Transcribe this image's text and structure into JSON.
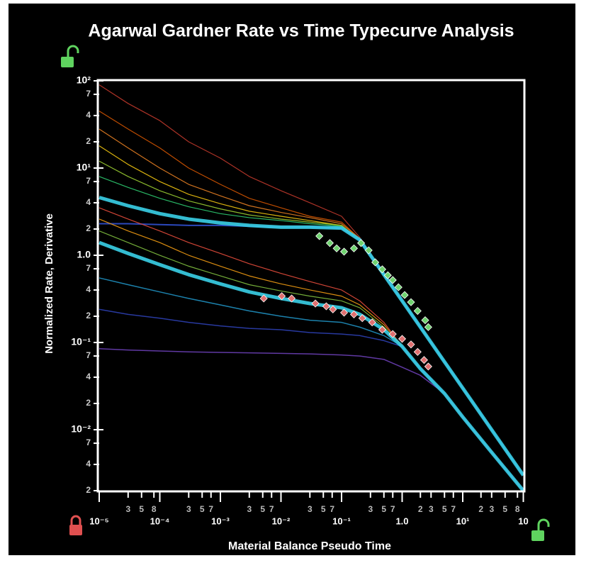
{
  "chart_data": {
    "type": "line",
    "title": "Agarwal Gardner Rate vs Time Typecurve Analysis",
    "x_label": "Material Balance Pseudo Time",
    "y_label": "Normalized  Rate, Derivative",
    "log_x": true,
    "log_y": true,
    "grid": false,
    "xlim": [
      1e-05,
      100
    ],
    "ylim": [
      0.002,
      100
    ],
    "xticks": [
      {
        "value": 1e-05,
        "label": "10⁻⁵"
      },
      {
        "value": 3e-05,
        "label": "3"
      },
      {
        "value": 5e-05,
        "label": "5"
      },
      {
        "value": 8e-05,
        "label": "8"
      },
      {
        "value": 0.0001,
        "label": "10⁻⁴"
      },
      {
        "value": 0.0003,
        "label": "3"
      },
      {
        "value": 0.0005,
        "label": "5"
      },
      {
        "value": 0.0007,
        "label": "7"
      },
      {
        "value": 0.001,
        "label": "10⁻³"
      },
      {
        "value": 0.003,
        "label": "3"
      },
      {
        "value": 0.005,
        "label": "5"
      },
      {
        "value": 0.007,
        "label": "7"
      },
      {
        "value": 0.01,
        "label": "10⁻²"
      },
      {
        "value": 0.03,
        "label": "3"
      },
      {
        "value": 0.05,
        "label": "5"
      },
      {
        "value": 0.07,
        "label": "7"
      },
      {
        "value": 0.1,
        "label": "10⁻¹"
      },
      {
        "value": 0.3,
        "label": "3"
      },
      {
        "value": 0.5,
        "label": "5"
      },
      {
        "value": 0.7,
        "label": "7"
      },
      {
        "value": 1,
        "label": "1.0"
      },
      2,
      3,
      5,
      7,
      {
        "value": 10,
        "label": "10¹"
      },
      {
        "value": 20,
        "label": "2"
      },
      {
        "value": 30,
        "label": "3"
      },
      {
        "value": 50,
        "label": "5"
      },
      {
        "value": 80,
        "label": "8"
      },
      {
        "value": 100,
        "label": "10"
      }
    ],
    "yticks": [
      {
        "value": 100,
        "label": "10²"
      },
      {
        "value": 70,
        "label": "7"
      },
      {
        "value": 40,
        "label": "4"
      },
      {
        "value": 20,
        "label": "2"
      },
      {
        "value": 10,
        "label": "10¹"
      },
      7,
      4,
      2,
      {
        "value": 1,
        "label": "1.0"
      },
      {
        "value": 0.7,
        "label": "7"
      },
      {
        "value": 0.4,
        "label": "4"
      },
      {
        "value": 0.2,
        "label": "2"
      },
      {
        "value": 0.1,
        "label": "10⁻¹"
      },
      {
        "value": 0.07,
        "label": "7"
      },
      {
        "value": 0.04,
        "label": "4"
      },
      {
        "value": 0.02,
        "label": "2"
      },
      {
        "value": 0.01,
        "label": "10⁻²"
      },
      {
        "value": 0.007,
        "label": "7"
      },
      {
        "value": 0.004,
        "label": "4"
      },
      {
        "value": 0.002,
        "label": "2"
      }
    ],
    "x": [
      1e-05,
      3e-05,
      0.0001,
      0.0003,
      0.001,
      0.003,
      0.01,
      0.03,
      0.1,
      0.2,
      0.5,
      1,
      2,
      5,
      10,
      30,
      100
    ],
    "series": [
      {
        "color": "#c0392b",
        "line_width": 1.2,
        "values": [
          90,
          55,
          35,
          20,
          13,
          8,
          5.5,
          4,
          2.8,
          1.6,
          0.6,
          0.3,
          0.15,
          0.06,
          0.03,
          0.01,
          0.003
        ]
      },
      {
        "color": "#d35400",
        "line_width": 1.2,
        "values": [
          45,
          28,
          17,
          10,
          6.5,
          4.5,
          3.5,
          2.8,
          2.4,
          1.55,
          0.6,
          0.3,
          0.15,
          0.06,
          0.03,
          0.01,
          0.003
        ]
      },
      {
        "color": "#e67e22",
        "line_width": 1.2,
        "values": [
          28,
          17,
          10,
          6.5,
          4.8,
          3.7,
          3.1,
          2.7,
          2.3,
          1.55,
          0.6,
          0.3,
          0.15,
          0.06,
          0.03,
          0.01,
          0.003
        ]
      },
      {
        "color": "#f1c40f",
        "line_width": 1.2,
        "values": [
          18,
          11,
          7,
          5,
          3.9,
          3.2,
          2.8,
          2.5,
          2.2,
          1.5,
          0.6,
          0.3,
          0.15,
          0.06,
          0.03,
          0.01,
          0.003
        ]
      },
      {
        "color": "#9acd32",
        "line_width": 1.2,
        "values": [
          12,
          8,
          5.5,
          4.2,
          3.4,
          2.9,
          2.6,
          2.4,
          2.2,
          1.5,
          0.6,
          0.3,
          0.15,
          0.06,
          0.03,
          0.01,
          0.003
        ]
      },
      {
        "color": "#2ecc71",
        "line_width": 1.2,
        "values": [
          8,
          6,
          4.5,
          3.6,
          3,
          2.7,
          2.5,
          2.3,
          2.15,
          1.5,
          0.6,
          0.3,
          0.15,
          0.06,
          0.03,
          0.01,
          0.003
        ]
      },
      {
        "color": "#3050d0",
        "line_width": 2,
        "values": [
          2.3,
          2.3,
          2.25,
          2.2,
          2.2,
          2.15,
          2.1,
          2.1,
          2.05,
          1.5,
          0.6,
          0.3,
          0.15,
          0.06,
          0.03,
          0.01,
          0.003
        ]
      },
      {
        "color": "#3ad0e8",
        "line_width": 5,
        "values": [
          4.6,
          3.7,
          3,
          2.6,
          2.35,
          2.2,
          2.1,
          2.1,
          2.05,
          1.5,
          0.6,
          0.3,
          0.15,
          0.06,
          0.03,
          0.01,
          0.003
        ]
      },
      {
        "color": "#e74c3c",
        "line_width": 1.2,
        "values": [
          3.5,
          2.6,
          1.9,
          1.4,
          1.05,
          0.8,
          0.62,
          0.5,
          0.4,
          0.3,
          0.17,
          0.09,
          0.05,
          0.026,
          0.014,
          0.0055,
          0.002
        ]
      },
      {
        "color": "#f39c12",
        "line_width": 1.2,
        "values": [
          2.6,
          1.9,
          1.4,
          1,
          0.75,
          0.58,
          0.47,
          0.4,
          0.34,
          0.27,
          0.16,
          0.09,
          0.05,
          0.026,
          0.014,
          0.0055,
          0.002
        ]
      },
      {
        "color": "#7fbf3f",
        "line_width": 1.2,
        "values": [
          1.9,
          1.4,
          1,
          0.75,
          0.58,
          0.46,
          0.39,
          0.34,
          0.3,
          0.25,
          0.15,
          0.09,
          0.05,
          0.026,
          0.014,
          0.0055,
          0.002
        ]
      },
      {
        "color": "#1f8fbf",
        "line_width": 1.5,
        "values": [
          0.55,
          0.46,
          0.38,
          0.32,
          0.27,
          0.23,
          0.2,
          0.18,
          0.17,
          0.15,
          0.12,
          0.09,
          0.05,
          0.026,
          0.014,
          0.0055,
          0.002
        ]
      },
      {
        "color": "#2c3fb0",
        "line_width": 1.5,
        "values": [
          0.24,
          0.21,
          0.19,
          0.17,
          0.155,
          0.145,
          0.14,
          0.13,
          0.125,
          0.12,
          0.105,
          0.09,
          0.05,
          0.026,
          0.014,
          0.0055,
          0.002
        ]
      },
      {
        "color": "#6a3fb5",
        "line_width": 1.5,
        "values": [
          0.085,
          0.082,
          0.08,
          0.078,
          0.077,
          0.076,
          0.075,
          0.074,
          0.072,
          0.07,
          0.064,
          0.052,
          0.042,
          0.026,
          0.014,
          0.0055,
          0.002
        ]
      },
      {
        "color": "#3ad0e8",
        "line_width": 5,
        "values": [
          1.4,
          1.05,
          0.78,
          0.6,
          0.47,
          0.38,
          0.32,
          0.28,
          0.25,
          0.21,
          0.14,
          0.09,
          0.05,
          0.026,
          0.014,
          0.0055,
          0.002
        ]
      }
    ],
    "point_series": [
      {
        "color": "#6fd36f",
        "marker": "diamond",
        "x": [
          0.043,
          0.064,
          0.083,
          0.11,
          0.16,
          0.21,
          0.28,
          0.36,
          0.47,
          0.58,
          0.7,
          0.87,
          1.1,
          1.4,
          1.8,
          2.4,
          2.7
        ],
        "values": [
          1.66,
          1.38,
          1.2,
          1.1,
          1.2,
          1.38,
          1.14,
          0.83,
          0.69,
          0.59,
          0.52,
          0.43,
          0.35,
          0.29,
          0.23,
          0.18,
          0.15
        ]
      },
      {
        "color": "#e07070",
        "marker": "diamond",
        "x": [
          0.0052,
          0.0103,
          0.015,
          0.037,
          0.056,
          0.072,
          0.11,
          0.16,
          0.22,
          0.32,
          0.47,
          0.7,
          1,
          1.4,
          1.8,
          2.3,
          2.7
        ],
        "values": [
          0.32,
          0.34,
          0.32,
          0.28,
          0.26,
          0.24,
          0.22,
          0.21,
          0.19,
          0.17,
          0.14,
          0.125,
          0.11,
          0.095,
          0.078,
          0.063,
          0.053
        ]
      }
    ]
  }
}
